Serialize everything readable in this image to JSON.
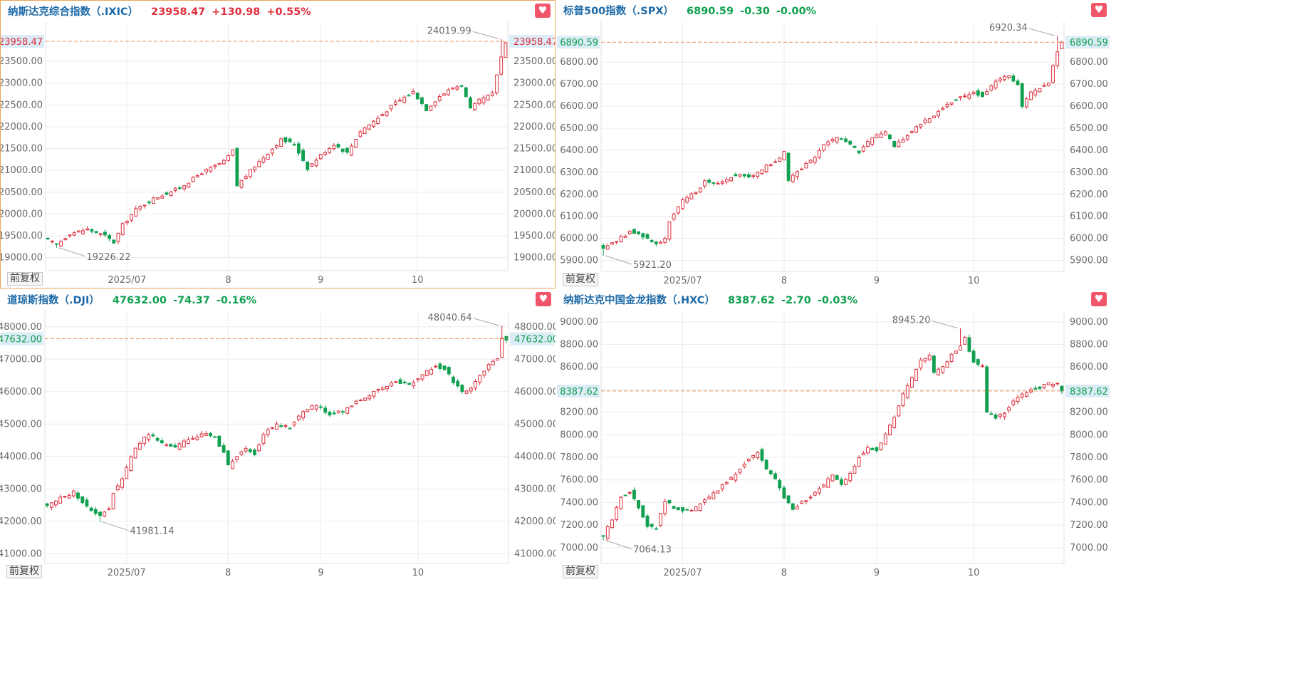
{
  "toolbar": {
    "adjust_label": "前复权",
    "favorite_icon": "heart-icon"
  },
  "colors": {
    "up": "#dd2e3c",
    "down": "#10a050",
    "last_line": "#e8935a",
    "last_bg": "#dcecf7",
    "name": "#1d6aa8"
  },
  "chart_data": [
    {
      "type": "candlestick",
      "title": "纳斯达克综合指数（.IXIC）",
      "last": "23958.47",
      "change": "+130.98",
      "change_pct": "+0.55%",
      "direction": "up",
      "ylim": [
        18700,
        24400
      ],
      "y_ticks": [
        19000,
        19500,
        20000,
        20500,
        21000,
        21500,
        22000,
        22500,
        23000,
        23500
      ],
      "y_tick_labels": [
        "19000.00",
        "19500.00",
        "20000.00",
        "20500.00",
        "21000.00",
        "21500.00",
        "22000.00",
        "22500.00",
        "23000.00",
        "23500.00"
      ],
      "last_value": 23958.47,
      "last_label": "23958.47",
      "x_ticks": [
        {
          "index": 18,
          "label": "2025/07"
        },
        {
          "index": 41,
          "label": "8"
        },
        {
          "index": 62,
          "label": "9"
        },
        {
          "index": 84,
          "label": "10"
        }
      ],
      "n": 105,
      "anchors": [
        [
          0,
          19400
        ],
        [
          2,
          19300
        ],
        [
          5,
          19550
        ],
        [
          9,
          19650
        ],
        [
          13,
          19500
        ],
        [
          15,
          19350
        ],
        [
          17,
          19750
        ],
        [
          20,
          20100
        ],
        [
          24,
          20350
        ],
        [
          30,
          20600
        ],
        [
          35,
          20950
        ],
        [
          40,
          21200
        ],
        [
          42,
          21450
        ],
        [
          43,
          20650
        ],
        [
          47,
          21100
        ],
        [
          50,
          21400
        ],
        [
          53,
          21700
        ],
        [
          56,
          21600
        ],
        [
          59,
          21050
        ],
        [
          62,
          21350
        ],
        [
          65,
          21600
        ],
        [
          68,
          21400
        ],
        [
          71,
          21900
        ],
        [
          75,
          22200
        ],
        [
          79,
          22550
        ],
        [
          83,
          22800
        ],
        [
          86,
          22400
        ],
        [
          89,
          22700
        ],
        [
          92,
          22900
        ],
        [
          94,
          22950
        ],
        [
          96,
          22400
        ],
        [
          98,
          22600
        ],
        [
          101,
          22750
        ],
        [
          102,
          23200
        ],
        [
          103,
          23600
        ],
        [
          104,
          23958
        ]
      ],
      "max_note": {
        "index": 103,
        "value": 24019.99,
        "label": "24019.99"
      },
      "min_note": {
        "index": 2,
        "value": 19226.22,
        "label": "19226.22"
      }
    },
    {
      "type": "candlestick",
      "title": "标普500指数（.SPX）",
      "last": "6890.59",
      "change": "-0.30",
      "change_pct": "-0.00%",
      "direction": "down",
      "ylim": [
        5850,
        6985
      ],
      "y_ticks": [
        5900,
        6000,
        6100,
        6200,
        6300,
        6400,
        6500,
        6600,
        6700,
        6800
      ],
      "y_tick_labels": [
        "5900.00",
        "6000.00",
        "6100.00",
        "6200.00",
        "6300.00",
        "6400.00",
        "6500.00",
        "6600.00",
        "6700.00",
        "6800.00"
      ],
      "last_value": 6890.59,
      "last_label": "6890.59",
      "x_ticks": [
        {
          "index": 18,
          "label": "2025/07"
        },
        {
          "index": 41,
          "label": "8"
        },
        {
          "index": 62,
          "label": "9"
        },
        {
          "index": 84,
          "label": "10"
        }
      ],
      "n": 105,
      "anchors": [
        [
          0,
          5960
        ],
        [
          3,
          5990
        ],
        [
          6,
          6030
        ],
        [
          9,
          6010
        ],
        [
          12,
          5975
        ],
        [
          14,
          6000
        ],
        [
          15,
          6080
        ],
        [
          18,
          6170
        ],
        [
          21,
          6210
        ],
        [
          23,
          6260
        ],
        [
          26,
          6250
        ],
        [
          30,
          6290
        ],
        [
          34,
          6280
        ],
        [
          37,
          6330
        ],
        [
          40,
          6360
        ],
        [
          41,
          6390
        ],
        [
          42,
          6260
        ],
        [
          45,
          6320
        ],
        [
          48,
          6370
        ],
        [
          50,
          6420
        ],
        [
          53,
          6460
        ],
        [
          55,
          6440
        ],
        [
          58,
          6390
        ],
        [
          61,
          6460
        ],
        [
          64,
          6480
        ],
        [
          66,
          6420
        ],
        [
          69,
          6470
        ],
        [
          72,
          6520
        ],
        [
          75,
          6560
        ],
        [
          78,
          6610
        ],
        [
          81,
          6640
        ],
        [
          84,
          6660
        ],
        [
          86,
          6650
        ],
        [
          89,
          6710
        ],
        [
          92,
          6740
        ],
        [
          94,
          6700
        ],
        [
          95,
          6600
        ],
        [
          97,
          6660
        ],
        [
          99,
          6680
        ],
        [
          101,
          6700
        ],
        [
          102,
          6790
        ],
        [
          103,
          6850
        ],
        [
          104,
          6890
        ]
      ],
      "max_note": {
        "index": 103,
        "value": 6920.34,
        "label": "6920.34"
      },
      "min_note": {
        "index": 0,
        "value": 5921.2,
        "label": "5921.20"
      }
    },
    {
      "type": "candlestick",
      "title": "道琼斯指数（.DJI）",
      "last": "47632.00",
      "change": "-74.37",
      "change_pct": "-0.16%",
      "direction": "down",
      "ylim": [
        40700,
        48500
      ],
      "y_ticks": [
        41000,
        42000,
        43000,
        44000,
        45000,
        46000,
        47000,
        48000
      ],
      "y_tick_labels": [
        "41000.00",
        "42000.00",
        "43000.00",
        "44000.00",
        "45000.00",
        "46000.00",
        "47000.00",
        "48000.00"
      ],
      "last_value": 47632.0,
      "last_label": "47632.00",
      "x_ticks": [
        {
          "index": 18,
          "label": "2025/07"
        },
        {
          "index": 41,
          "label": "8"
        },
        {
          "index": 62,
          "label": "9"
        },
        {
          "index": 84,
          "label": "10"
        }
      ],
      "n": 105,
      "anchors": [
        [
          0,
          42500
        ],
        [
          3,
          42700
        ],
        [
          6,
          42900
        ],
        [
          8,
          42600
        ],
        [
          10,
          42300
        ],
        [
          12,
          42200
        ],
        [
          14,
          42400
        ],
        [
          15,
          42900
        ],
        [
          17,
          43300
        ],
        [
          20,
          44300
        ],
        [
          23,
          44700
        ],
        [
          26,
          44400
        ],
        [
          29,
          44300
        ],
        [
          32,
          44500
        ],
        [
          35,
          44700
        ],
        [
          38,
          44600
        ],
        [
          40,
          44100
        ],
        [
          41,
          43700
        ],
        [
          43,
          44000
        ],
        [
          45,
          44200
        ],
        [
          47,
          44100
        ],
        [
          49,
          44700
        ],
        [
          52,
          45000
        ],
        [
          55,
          44900
        ],
        [
          58,
          45400
        ],
        [
          61,
          45600
        ],
        [
          64,
          45300
        ],
        [
          67,
          45400
        ],
        [
          70,
          45700
        ],
        [
          73,
          45900
        ],
        [
          76,
          46100
        ],
        [
          79,
          46300
        ],
        [
          82,
          46200
        ],
        [
          85,
          46500
        ],
        [
          88,
          46800
        ],
        [
          90,
          46700
        ],
        [
          92,
          46300
        ],
        [
          94,
          46000
        ],
        [
          96,
          46100
        ],
        [
          98,
          46500
        ],
        [
          100,
          46800
        ],
        [
          102,
          47000
        ],
        [
          103,
          47700
        ],
        [
          104,
          47632
        ]
      ],
      "max_note": {
        "index": 103,
        "value": 48040.64,
        "label": "48040.64"
      },
      "min_note": {
        "index": 12,
        "value": 41981.14,
        "label": "41981.14"
      }
    },
    {
      "type": "candlestick",
      "title": "纳斯达克中国金龙指数（.HXC）",
      "last": "8387.62",
      "change": "-2.70",
      "change_pct": "-0.03%",
      "direction": "down",
      "ylim": [
        6860,
        9100
      ],
      "y_ticks": [
        7000,
        7200,
        7400,
        7600,
        7800,
        8000,
        8200,
        8400,
        8600,
        8800,
        9000
      ],
      "y_tick_labels": [
        "7000.00",
        "7200.00",
        "7400.00",
        "7600.00",
        "7800.00",
        "8000.00",
        "8200.00",
        "8400.00",
        "8600.00",
        "8800.00",
        "9000.00"
      ],
      "last_value": 8387.62,
      "last_label": "8387.62",
      "x_ticks": [
        {
          "index": 18,
          "label": "2025/07"
        },
        {
          "index": 41,
          "label": "8"
        },
        {
          "index": 62,
          "label": "9"
        },
        {
          "index": 84,
          "label": "10"
        }
      ],
      "n": 105,
      "anchors": [
        [
          0,
          7100
        ],
        [
          2,
          7250
        ],
        [
          4,
          7450
        ],
        [
          6,
          7500
        ],
        [
          8,
          7350
        ],
        [
          10,
          7200
        ],
        [
          12,
          7180
        ],
        [
          14,
          7420
        ],
        [
          16,
          7350
        ],
        [
          18,
          7320
        ],
        [
          21,
          7350
        ],
        [
          24,
          7450
        ],
        [
          27,
          7550
        ],
        [
          30,
          7650
        ],
        [
          32,
          7750
        ],
        [
          35,
          7850
        ],
        [
          37,
          7700
        ],
        [
          39,
          7600
        ],
        [
          41,
          7450
        ],
        [
          43,
          7350
        ],
        [
          45,
          7400
        ],
        [
          47,
          7450
        ],
        [
          50,
          7550
        ],
        [
          52,
          7650
        ],
        [
          54,
          7550
        ],
        [
          56,
          7650
        ],
        [
          58,
          7800
        ],
        [
          60,
          7900
        ],
        [
          62,
          7850
        ],
        [
          64,
          8000
        ],
        [
          66,
          8150
        ],
        [
          68,
          8350
        ],
        [
          70,
          8500
        ],
        [
          72,
          8650
        ],
        [
          74,
          8700
        ],
        [
          75,
          8550
        ],
        [
          77,
          8600
        ],
        [
          79,
          8700
        ],
        [
          81,
          8800
        ],
        [
          82,
          8850
        ],
        [
          84,
          8650
        ],
        [
          86,
          8600
        ],
        [
          87,
          8200
        ],
        [
          89,
          8150
        ],
        [
          91,
          8200
        ],
        [
          93,
          8300
        ],
        [
          95,
          8350
        ],
        [
          97,
          8400
        ],
        [
          99,
          8420
        ],
        [
          101,
          8450
        ],
        [
          103,
          8450
        ],
        [
          104,
          8387
        ]
      ],
      "max_note": {
        "index": 81,
        "value": 8945.2,
        "label": "8945.20"
      },
      "min_note": {
        "index": 0,
        "value": 7064.13,
        "label": "7064.13"
      }
    }
  ]
}
